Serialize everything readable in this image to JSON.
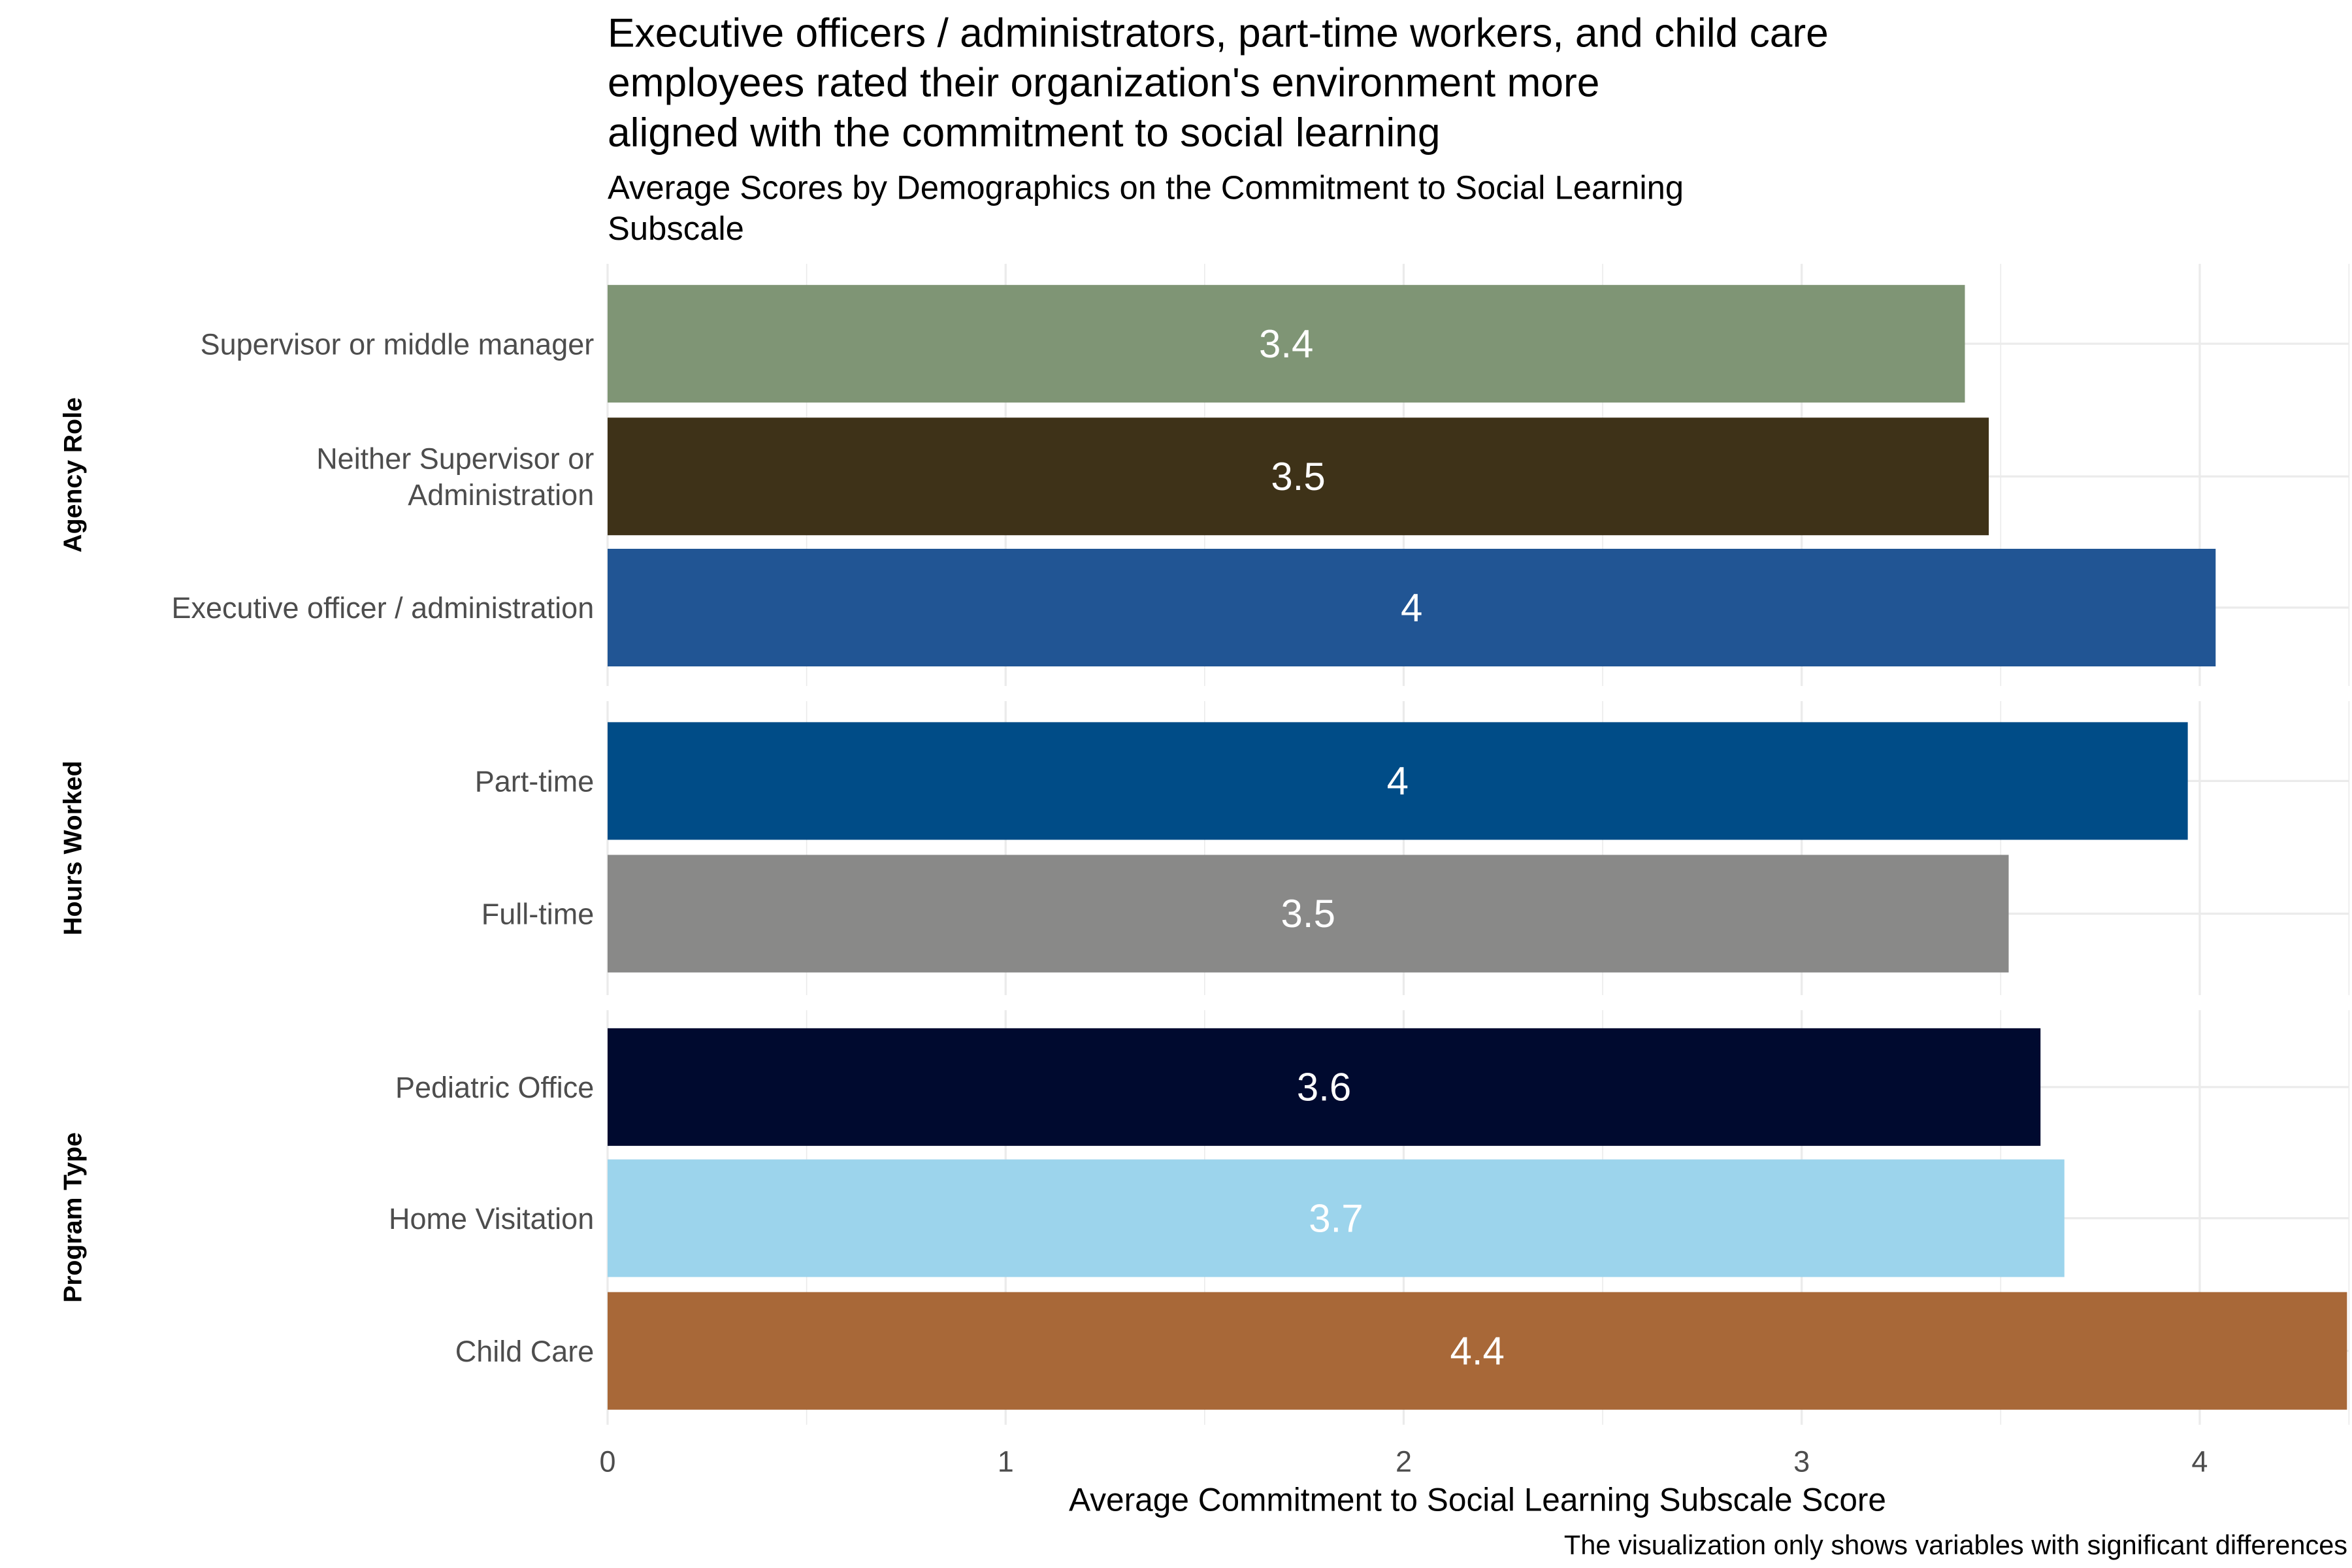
{
  "chart_data": {
    "type": "bar",
    "orientation": "horizontal",
    "title": "Executive officers / administrators, part-time workers, and child care\nemployees rated their organization's environment more\naligned with the commitment to social learning",
    "subtitle": "Average Scores by Demographics on the Commitment to Social Learning\nSubscale",
    "xlabel": "Average Commitment to Social Learning Subscale Score",
    "caption": "The visualization only shows variables with significant differences",
    "xlim": [
      0,
      4.37
    ],
    "xticks": [
      "0",
      "1",
      "2",
      "3",
      "4"
    ],
    "grid": true,
    "facets": [
      {
        "label": "Agency Role",
        "bars": [
          {
            "category": "Supervisor or middle manager",
            "value": 3.41,
            "label": "3.4",
            "color": "#7f9575"
          },
          {
            "category": "Neither Supervisor or\nAdministration",
            "value": 3.47,
            "label": "3.5",
            "color": "#3e3218"
          },
          {
            "category": "Executive officer / administration",
            "value": 4.04,
            "label": "4",
            "color": "#215594"
          }
        ]
      },
      {
        "label": "Hours Worked",
        "bars": [
          {
            "category": "Part-time",
            "value": 3.97,
            "label": "4",
            "color": "#004c87"
          },
          {
            "category": "Full-time",
            "value": 3.52,
            "label": "3.5",
            "color": "#898988"
          }
        ]
      },
      {
        "label": "Program Type",
        "bars": [
          {
            "category": "Pediatric Office",
            "value": 3.6,
            "label": "3.6",
            "color": "#000a2f"
          },
          {
            "category": "Home Visitation",
            "value": 3.66,
            "label": "3.7",
            "color": "#9cd4ec"
          },
          {
            "category": "Child Care",
            "value": 4.37,
            "label": "4.4",
            "color": "#a86838"
          }
        ]
      }
    ]
  }
}
